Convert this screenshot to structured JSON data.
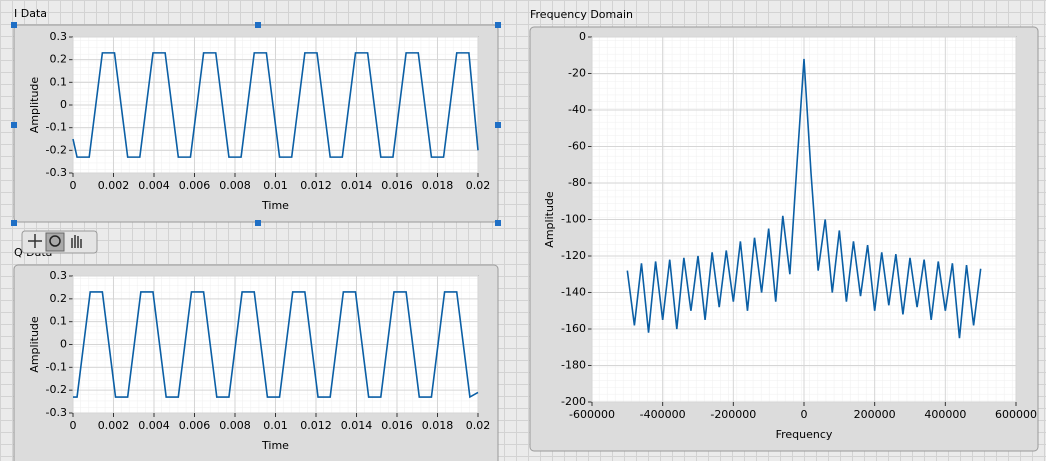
{
  "chart_data": [
    {
      "type": "line",
      "title": "I Data",
      "x_label": "Time",
      "y_label": "Amplitude",
      "color": "#0b5fa5",
      "grid": true,
      "x": [
        0,
        0.0002,
        0.0008,
        0.00145,
        0.00205,
        0.0027,
        0.0033,
        0.00395,
        0.00455,
        0.0052,
        0.0058,
        0.00645,
        0.00705,
        0.0077,
        0.0083,
        0.00895,
        0.00955,
        0.0102,
        0.0108,
        0.01145,
        0.01205,
        0.0127,
        0.0133,
        0.01395,
        0.01455,
        0.0152,
        0.0158,
        0.01645,
        0.01705,
        0.0177,
        0.0183,
        0.01895,
        0.01955,
        0.02
      ],
      "values": [
        -0.15,
        -0.23,
        -0.23,
        0.23,
        0.23,
        -0.23,
        -0.23,
        0.23,
        0.23,
        -0.23,
        -0.23,
        0.23,
        0.23,
        -0.23,
        -0.23,
        0.23,
        0.23,
        -0.23,
        -0.23,
        0.23,
        0.23,
        -0.23,
        -0.23,
        0.23,
        0.23,
        -0.23,
        -0.23,
        0.23,
        0.23,
        -0.23,
        -0.23,
        0.23,
        0.23,
        -0.2
      ],
      "xlim": [
        0,
        0.02
      ],
      "xticks": [
        0,
        0.002,
        0.004,
        0.006,
        0.008,
        0.01,
        0.012,
        0.014,
        0.016,
        0.018,
        0.02
      ],
      "ylim": [
        -0.3,
        0.3
      ],
      "yticks": [
        0.3,
        0.2,
        0.1,
        0,
        -0.1,
        -0.2,
        -0.3
      ]
    },
    {
      "type": "line",
      "title": "Q Data",
      "x_label": "Time",
      "y_label": "Amplitude",
      "color": "#0b5fa5",
      "grid": true,
      "x": [
        0,
        0.0002,
        0.00085,
        0.00145,
        0.0021,
        0.0027,
        0.00335,
        0.00395,
        0.0046,
        0.0052,
        0.00585,
        0.00645,
        0.0071,
        0.0077,
        0.00835,
        0.00895,
        0.0096,
        0.0102,
        0.01085,
        0.01145,
        0.0121,
        0.0127,
        0.01335,
        0.01395,
        0.0146,
        0.0152,
        0.01585,
        0.01645,
        0.0171,
        0.0177,
        0.01835,
        0.01895,
        0.0196,
        0.02
      ],
      "values": [
        -0.23,
        -0.23,
        0.23,
        0.23,
        -0.23,
        -0.23,
        0.23,
        0.23,
        -0.23,
        -0.23,
        0.23,
        0.23,
        -0.23,
        -0.23,
        0.23,
        0.23,
        -0.23,
        -0.23,
        0.23,
        0.23,
        -0.23,
        -0.23,
        0.23,
        0.23,
        -0.23,
        -0.23,
        0.23,
        0.23,
        -0.23,
        -0.23,
        0.23,
        0.23,
        -0.23,
        -0.21
      ],
      "xlim": [
        0,
        0.02
      ],
      "xticks": [
        0,
        0.002,
        0.004,
        0.006,
        0.008,
        0.01,
        0.012,
        0.014,
        0.016,
        0.018,
        0.02
      ],
      "ylim": [
        -0.3,
        0.3
      ],
      "yticks": [
        0.3,
        0.2,
        0.1,
        0,
        -0.1,
        -0.2,
        -0.3
      ]
    },
    {
      "type": "line",
      "title": "Frequency Domain",
      "x_label": "Frequency",
      "y_label": "Amplitude",
      "color": "#0b5fa5",
      "grid": true,
      "x": [
        -500000,
        -480000,
        -460000,
        -440000,
        -420000,
        -400000,
        -380000,
        -360000,
        -340000,
        -320000,
        -300000,
        -280000,
        -260000,
        -240000,
        -220000,
        -200000,
        -180000,
        -160000,
        -140000,
        -120000,
        -100000,
        -80000,
        -60000,
        -40000,
        -20000,
        0,
        20000,
        40000,
        60000,
        80000,
        100000,
        120000,
        140000,
        160000,
        180000,
        200000,
        220000,
        240000,
        260000,
        280000,
        300000,
        320000,
        340000,
        360000,
        380000,
        400000,
        420000,
        440000,
        460000,
        480000,
        500000
      ],
      "values": [
        -128,
        -158,
        -124,
        -162,
        -123,
        -155,
        -122,
        -160,
        -121,
        -150,
        -120,
        -155,
        -118,
        -148,
        -117,
        -145,
        -112,
        -150,
        -110,
        -140,
        -105,
        -145,
        -98,
        -130,
        -70,
        -12,
        -75,
        -128,
        -100,
        -140,
        -106,
        -145,
        -112,
        -142,
        -114,
        -150,
        -118,
        -147,
        -119,
        -152,
        -121,
        -148,
        -122,
        -155,
        -123,
        -150,
        -124,
        -165,
        -125,
        -158,
        -127
      ],
      "xlim": [
        -600000,
        600000
      ],
      "xticks": [
        -600000,
        -400000,
        -200000,
        0,
        200000,
        400000,
        600000
      ],
      "ylim": [
        -200,
        0
      ],
      "yticks": [
        0,
        -20,
        -40,
        -60,
        -80,
        -100,
        -120,
        -140,
        -160,
        -180,
        -200
      ]
    }
  ]
}
